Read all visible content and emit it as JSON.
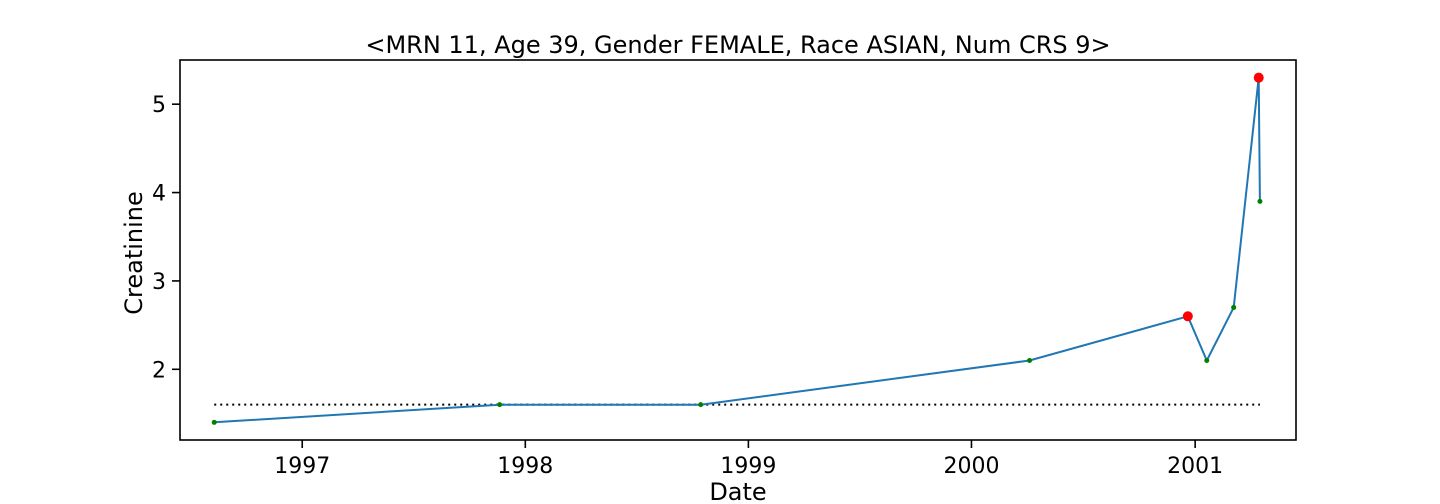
{
  "chart_data": {
    "type": "line",
    "title": "<MRN 11, Age 39, Gender FEMALE, Race ASIAN, Num CRS 9>",
    "xlabel": "Date",
    "ylabel": "Creatinine",
    "xlim": [
      "1996-06-15",
      "2001-06-15"
    ],
    "ylim": [
      1.2,
      5.5
    ],
    "x_ticks": [
      {
        "label": "1997",
        "date": "1997-01-01"
      },
      {
        "label": "1998",
        "date": "1998-01-01"
      },
      {
        "label": "1999",
        "date": "1999-01-01"
      },
      {
        "label": "2000",
        "date": "2000-01-01"
      },
      {
        "label": "2001",
        "date": "2001-01-01"
      }
    ],
    "y_ticks": [
      2,
      3,
      4,
      5
    ],
    "series": [
      {
        "color": "#1f77b4",
        "points": [
          {
            "date": "1996-08-10",
            "value": 1.4,
            "color": "#008000"
          },
          {
            "date": "1997-11-20",
            "value": 1.6,
            "color": "#008000"
          },
          {
            "date": "1998-10-15",
            "value": 1.6,
            "color": "#008000"
          },
          {
            "date": "2000-04-05",
            "value": 2.1,
            "color": "#008000"
          },
          {
            "date": "2000-12-20",
            "value": 2.6,
            "color": "#ff0000"
          },
          {
            "date": "2001-01-20",
            "value": 2.1,
            "color": "#008000"
          },
          {
            "date": "2001-03-05",
            "value": 2.7,
            "color": "#008000"
          },
          {
            "date": "2001-04-15",
            "value": 5.3,
            "color": "#ff0000"
          },
          {
            "date": "2001-04-17",
            "value": 3.9,
            "color": "#008000"
          }
        ]
      }
    ],
    "reference_line": {
      "value": 1.6,
      "from": "1996-08-10",
      "to": "2001-04-17",
      "style": "dotted",
      "color": "#000000"
    },
    "grid": false,
    "legend": "none"
  }
}
